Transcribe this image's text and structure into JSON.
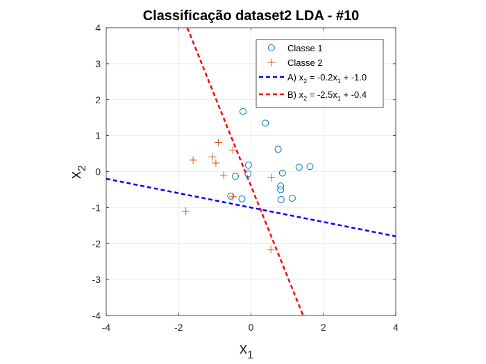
{
  "chart_data": {
    "type": "scatter",
    "title": "Classificação dataset2 LDA - #10",
    "xlabel": {
      "base": "x",
      "sub": "1"
    },
    "ylabel": {
      "base": "x",
      "sub": "2"
    },
    "xlim": [
      -4,
      4
    ],
    "ylim": [
      -4,
      4
    ],
    "xticks": [
      -4,
      -2,
      0,
      2,
      4
    ],
    "yticks": [
      -4,
      -3,
      -2,
      -1,
      0,
      1,
      2,
      3,
      4
    ],
    "grid": true,
    "legend_position": "top-right",
    "series": [
      {
        "name": "Classe 1",
        "marker": "circle",
        "color": "#0072BD",
        "points": [
          [
            -0.22,
            1.67
          ],
          [
            0.4,
            1.35
          ],
          [
            0.75,
            0.62
          ],
          [
            -0.07,
            0.18
          ],
          [
            -0.08,
            -0.06
          ],
          [
            0.87,
            -0.04
          ],
          [
            1.33,
            0.12
          ],
          [
            1.63,
            0.14
          ],
          [
            -0.43,
            -0.13
          ],
          [
            0.82,
            -0.4
          ],
          [
            0.82,
            -0.5
          ],
          [
            -0.56,
            -0.68
          ],
          [
            -0.25,
            -0.76
          ],
          [
            0.83,
            -0.78
          ],
          [
            1.14,
            -0.74
          ]
        ]
      },
      {
        "name": "Classe 2",
        "marker": "plus",
        "color": "#D95319",
        "points": [
          [
            -1.6,
            0.32
          ],
          [
            -1.07,
            0.41
          ],
          [
            -0.9,
            0.81
          ],
          [
            -0.97,
            0.24
          ],
          [
            -0.75,
            -0.1
          ],
          [
            -0.5,
            0.6
          ],
          [
            0.56,
            -0.17
          ],
          [
            -1.8,
            -1.1
          ],
          [
            -0.5,
            -0.7
          ],
          [
            0.55,
            -2.17
          ]
        ]
      }
    ],
    "lines": [
      {
        "label": {
          "prefix": "A) x",
          "s1": "2",
          "mid": " = -0.2x",
          "s2": "1",
          "suffix": " + -1.0"
        },
        "slope": -0.2,
        "intercept": -1.0,
        "color": "#0000FF",
        "style": "dashed"
      },
      {
        "label": {
          "prefix": "B) x",
          "s1": "2",
          "mid": " = -2.5x",
          "s2": "1",
          "suffix": " + -0.4"
        },
        "slope": -2.5,
        "intercept": -0.4,
        "color": "#FF0000",
        "style": "dashed"
      }
    ]
  }
}
